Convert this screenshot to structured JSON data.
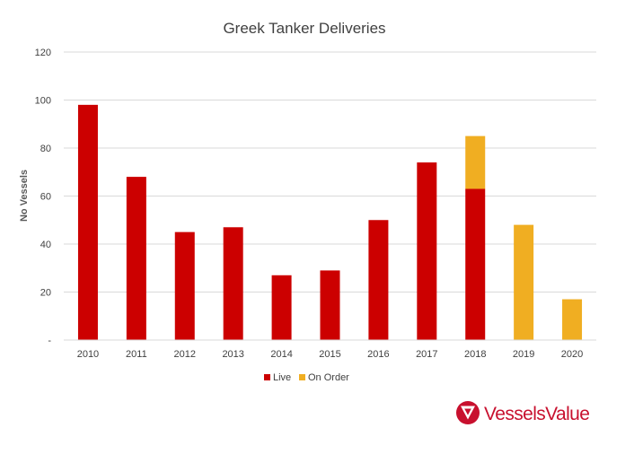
{
  "chart_data": {
    "type": "bar",
    "stacked": true,
    "title": "Greek Tanker Deliveries",
    "xlabel": "",
    "ylabel": "No Vessels",
    "categories": [
      "2010",
      "2011",
      "2012",
      "2013",
      "2014",
      "2015",
      "2016",
      "2017",
      "2018",
      "2019",
      "2020"
    ],
    "series": [
      {
        "name": "Live",
        "color": "#cc0000",
        "values": [
          98,
          68,
          45,
          47,
          27,
          29,
          50,
          74,
          63,
          0,
          0
        ]
      },
      {
        "name": "On Order",
        "color": "#f0ae22",
        "values": [
          0,
          0,
          0,
          0,
          0,
          0,
          0,
          0,
          22,
          48,
          17
        ]
      }
    ],
    "ylim": [
      0,
      120
    ],
    "yticks": [
      0,
      20,
      40,
      60,
      80,
      100,
      120
    ],
    "ytick_labels": [
      "-",
      "20",
      "40",
      "60",
      "80",
      "100",
      "120"
    ],
    "grid": true,
    "legend_position": "bottom"
  },
  "branding": {
    "logo_text": "VesselsValue",
    "logo_color": "#c8102e",
    "logo_icon": "vesselsvalue-logo-icon"
  },
  "colors": {
    "gridline": "#d9d9d9",
    "axis_line": "#d9d9d9",
    "text": "#404040"
  }
}
